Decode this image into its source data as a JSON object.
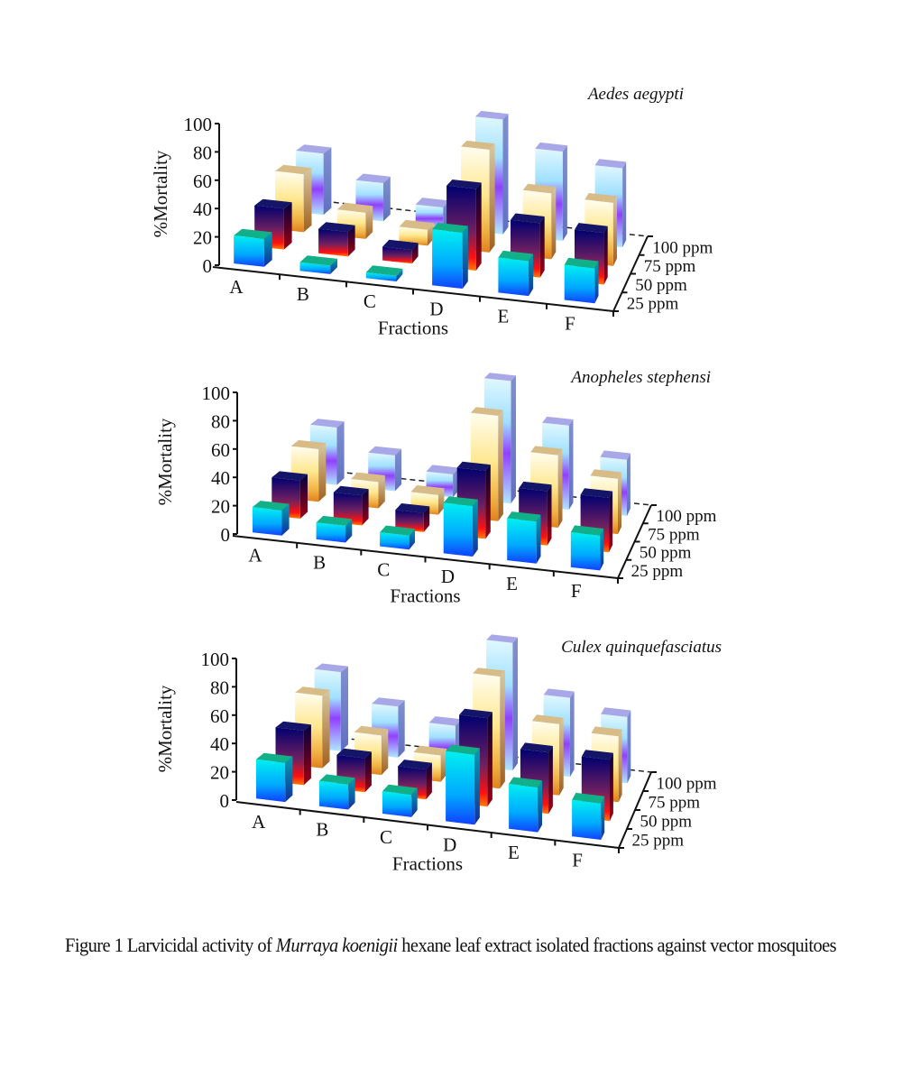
{
  "chart_data": [
    {
      "type": "bar3d",
      "title": "Aedes aegypti",
      "xlabel": "Fractions",
      "ylabel": "%Mortality",
      "categories": [
        "A",
        "B",
        "C",
        "D",
        "E",
        "F"
      ],
      "yticks": [
        "0",
        "20",
        "40",
        "60",
        "80",
        "100"
      ],
      "ylim": [
        0,
        100
      ],
      "series": [
        {
          "name": "25 ppm",
          "values": [
            20,
            6,
            4,
            40,
            25,
            25
          ]
        },
        {
          "name": "50 ppm",
          "values": [
            30,
            18,
            10,
            60,
            40,
            38
          ]
        },
        {
          "name": "75 ppm",
          "values": [
            44,
            20,
            12,
            78,
            50,
            48
          ]
        },
        {
          "name": "100 ppm",
          "values": [
            48,
            30,
            16,
            90,
            70,
            62
          ]
        }
      ]
    },
    {
      "type": "bar3d",
      "title": "Anopheles stephensi",
      "xlabel": "Fractions",
      "ylabel": "%Mortality",
      "categories": [
        "A",
        "B",
        "C",
        "D",
        "E",
        "F"
      ],
      "yticks": [
        "0",
        "20",
        "40",
        "60",
        "80",
        "100"
      ],
      "ylim": [
        0,
        100
      ],
      "series": [
        {
          "name": "25 ppm",
          "values": [
            18,
            12,
            10,
            36,
            30,
            25
          ]
        },
        {
          "name": "50 ppm",
          "values": [
            28,
            22,
            14,
            50,
            40,
            40
          ]
        },
        {
          "name": "75 ppm",
          "values": [
            40,
            20,
            15,
            80,
            55,
            42
          ]
        },
        {
          "name": "100 ppm",
          "values": [
            45,
            28,
            18,
            96,
            66,
            44
          ]
        }
      ]
    },
    {
      "type": "bar3d",
      "title": "Culex quinquefasciatus",
      "xlabel": "Fractions",
      "ylabel": "%Mortality",
      "categories": [
        "A",
        "B",
        "C",
        "D",
        "E",
        "F"
      ],
      "yticks": [
        "0",
        "20",
        "40",
        "60",
        "80",
        "100"
      ],
      "ylim": [
        0,
        100
      ],
      "series": [
        {
          "name": "25 ppm",
          "values": [
            28,
            18,
            16,
            50,
            32,
            26
          ]
        },
        {
          "name": "50 ppm",
          "values": [
            40,
            25,
            22,
            65,
            45,
            45
          ]
        },
        {
          "name": "75 ppm",
          "values": [
            55,
            30,
            20,
            85,
            54,
            50
          ]
        },
        {
          "name": "100 ppm",
          "values": [
            62,
            40,
            30,
            100,
            62,
            52
          ]
        }
      ]
    }
  ],
  "caption": {
    "prefix": "Figure 1 Larvicidal activity of ",
    "species": "Murraya koenigii",
    "suffix": " hexane leaf extract isolated fractions against vector mosquitoes"
  }
}
